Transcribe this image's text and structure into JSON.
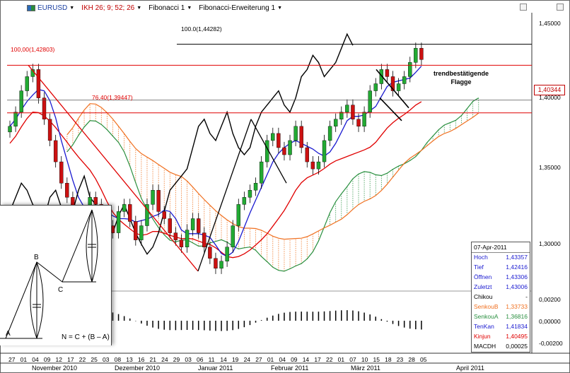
{
  "toolbar": {
    "symbol": "EURUSD",
    "ikh": "IKH 26; 9; 52; 26",
    "fib1": "Fibonacci 1",
    "fib2": "Fibonacci-Erweiterung 1"
  },
  "fib_labels": {
    "top": "100.0(1,44282)",
    "upper": "100,00(1,42803)",
    "lower": "76,40(1,39447)"
  },
  "current_price": "1,40344",
  "annotation": "trendbestätigende\nFlagge",
  "info_panel": {
    "date": "07-Apr-2011",
    "rows": [
      {
        "label": "Hoch",
        "value": "1,43357",
        "color": "#1a1ad0"
      },
      {
        "label": "Tief",
        "value": "1,42416",
        "color": "#1a1ad0"
      },
      {
        "label": "Öffnen",
        "value": "1,43306",
        "color": "#1a1ad0"
      },
      {
        "label": "Zuletzt",
        "value": "1,43006",
        "color": "#1a1ad0"
      },
      {
        "label": "Chikou",
        "value": "-",
        "color": "#000000"
      },
      {
        "label": "SenkouB",
        "value": "1,33733",
        "color": "#f07020"
      },
      {
        "label": "SenkouA",
        "value": "1,36816",
        "color": "#2a9040"
      },
      {
        "label": "TenKan",
        "value": "1,41834",
        "color": "#1a1ad0"
      },
      {
        "label": "Kinjun",
        "value": "1,40495",
        "color": "#e00000"
      },
      {
        "label": "MACDH",
        "value": "0,00025",
        "color": "#000000"
      }
    ]
  },
  "inset": {
    "labels": [
      "A",
      "B",
      "C"
    ],
    "formula": "N = C + (B – A)"
  },
  "axis": {
    "price_ticks": [
      "1,45000",
      "1,40000",
      "1,35000",
      "1,30000"
    ],
    "macd_ticks": [
      "0,00200",
      "0,00000",
      "-0,00200"
    ],
    "months": [
      "November 2010",
      "Dezember 2010",
      "Januar 2011",
      "Februar 2011",
      "März 2011",
      "April 2011"
    ],
    "days": [
      "27",
      "01",
      "04",
      "09",
      "12",
      "17",
      "22",
      "25",
      "03",
      "08",
      "13",
      "16",
      "21",
      "24",
      "29",
      "03",
      "06",
      "11",
      "14",
      "19",
      "24",
      "27",
      "01",
      "04",
      "09",
      "14",
      "17",
      "22",
      "01",
      "07",
      "10",
      "15",
      "18",
      "23",
      "28",
      "05"
    ]
  },
  "chart_data": {
    "type": "candlestick",
    "ylim": [
      1.27,
      1.465
    ],
    "fib_levels": [
      1.44282,
      1.42803,
      1.39447
    ],
    "current_price": 1.40344,
    "closes": [
      1.385,
      1.395,
      1.41,
      1.42,
      1.425,
      1.405,
      1.39,
      1.375,
      1.36,
      1.345,
      1.335,
      1.32,
      1.315,
      1.325,
      1.335,
      1.33,
      1.32,
      1.315,
      1.31,
      1.325,
      1.33,
      1.318,
      1.305,
      1.315,
      1.33,
      1.34,
      1.325,
      1.32,
      1.31,
      1.305,
      1.3,
      1.312,
      1.32,
      1.31,
      1.3,
      1.292,
      1.285,
      1.29,
      1.3,
      1.315,
      1.33,
      1.335,
      1.34,
      1.345,
      1.36,
      1.375,
      1.38,
      1.37,
      1.365,
      1.375,
      1.385,
      1.37,
      1.36,
      1.355,
      1.36,
      1.375,
      1.385,
      1.39,
      1.395,
      1.4,
      1.39,
      1.385,
      1.395,
      1.41,
      1.415,
      1.425,
      1.42,
      1.41,
      1.415,
      1.42,
      1.43,
      1.44,
      1.432
    ]
  }
}
